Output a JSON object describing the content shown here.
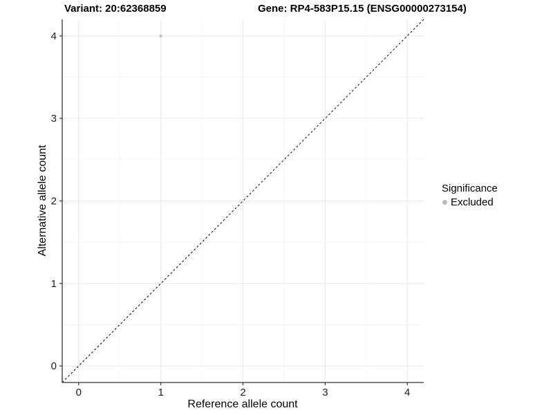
{
  "titles": {
    "variant": "Variant: 20:62368859",
    "gene": "Gene: RP4-583P15.15 (ENSG00000273154)"
  },
  "axes": {
    "x_label": "Reference allele count",
    "y_label": "Alternative allele count"
  },
  "legend": {
    "title": "Significance",
    "items": [
      {
        "label": "Excluded",
        "color": "#b9b9b9"
      }
    ]
  },
  "colors": {
    "background": "#ffffff",
    "point": "#bdbdbd",
    "grid_major": "#e8e8e8",
    "grid_minor": "#f4f4f4",
    "axis_line": "#333333",
    "tick": "#333333",
    "reference_line": "#000000",
    "text": "#000000"
  },
  "chart_data": {
    "type": "scatter",
    "title": "Variant: 20:62368859   Gene: RP4-583P15.15 (ENSG00000273154)",
    "xlabel": "Reference allele count",
    "ylabel": "Alternative allele count",
    "xlim": [
      -0.2,
      4.2
    ],
    "ylim": [
      -0.2,
      4.2
    ],
    "x_ticks": [
      0,
      1,
      2,
      3,
      4
    ],
    "y_ticks": [
      0,
      1,
      2,
      3,
      4
    ],
    "x_minor_ticks": [
      0.5,
      1.5,
      2.5,
      3.5
    ],
    "y_minor_ticks": [
      0.5,
      1.5,
      2.5,
      3.5
    ],
    "grid": true,
    "legend_position": "right",
    "legend_title": "Significance",
    "series": [
      {
        "name": "Excluded",
        "color": "#bdbdbd",
        "points": [
          {
            "x": 1,
            "y": 4
          }
        ]
      }
    ],
    "reference_line": {
      "type": "identity",
      "style": "dashed",
      "color": "#000000",
      "from": [
        -0.2,
        -0.2
      ],
      "to": [
        4.2,
        4.2
      ]
    }
  }
}
